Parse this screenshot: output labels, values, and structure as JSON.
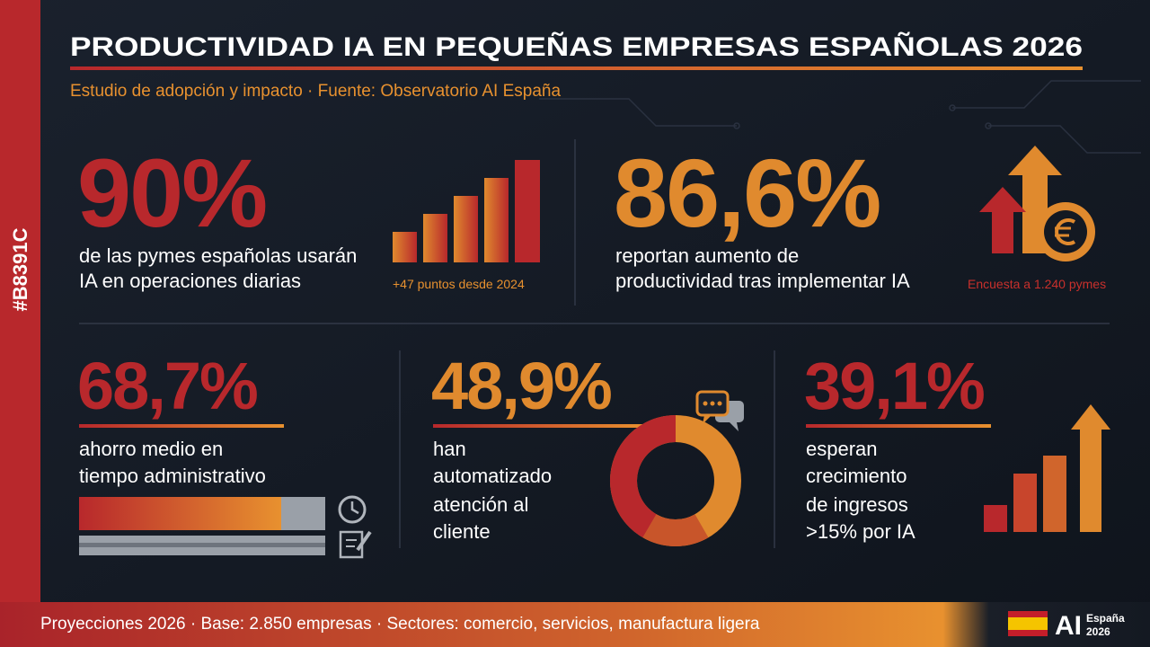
{
  "side_tag": "#B8391C",
  "header": {
    "title": "PRODUCTIVIDAD IA EN PEQUEÑAS EMPRESAS ESPAÑOLAS 2026",
    "subtitle": "Estudio de adopción y impacto · Fuente: Observatorio AI España"
  },
  "stats": [
    {
      "value": "90%",
      "description": [
        "de las pymes españolas usarán",
        "IA en operaciones diarias"
      ],
      "note": "+47 puntos desde 2024"
    },
    {
      "value": "86,6%",
      "description": [
        "reportan aumento de",
        "productividad tras implementar IA"
      ],
      "note": "Encuesta a 1.240 pymes"
    },
    {
      "value": "68,7%",
      "description": [
        "ahorro medio en",
        "tiempo administrativo"
      ]
    },
    {
      "value": "48,9%",
      "description": [
        "han",
        "automatizado",
        "atención al",
        "cliente"
      ]
    },
    {
      "value": "39,1%",
      "description": [
        "esperan",
        "crecimiento",
        "de ingresos",
        ">15% por IA"
      ]
    }
  ],
  "footer": {
    "text": "Proyecciones 2026 · Base: 2.850 empresas · Sectores: comercio, servicios, manufactura ligera",
    "brand": "AI",
    "brand_country": "España",
    "brand_year": "2026"
  }
}
